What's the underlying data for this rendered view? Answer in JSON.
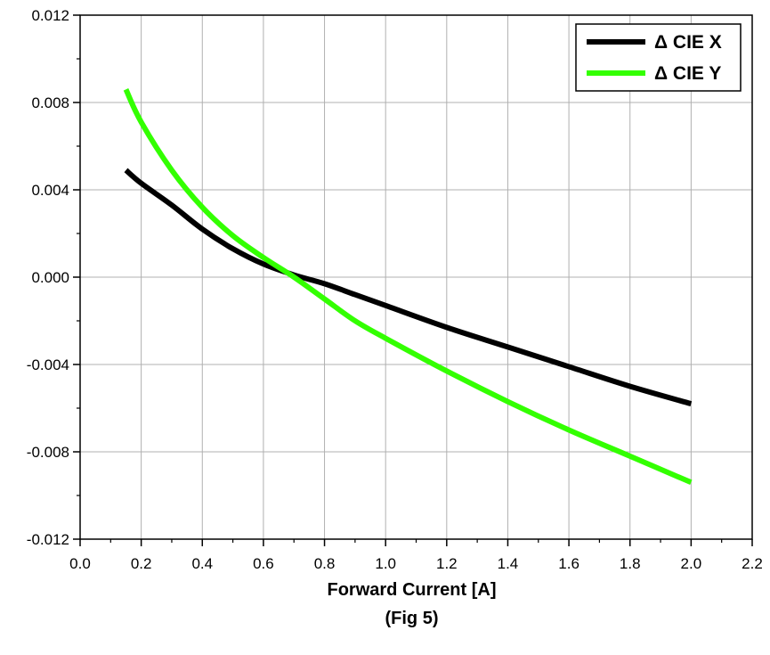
{
  "chart_data": {
    "type": "line",
    "xlabel": "Forward Current [A]",
    "caption": "(Fig 5)",
    "xlim": [
      0.0,
      2.2
    ],
    "ylim": [
      -0.012,
      0.012
    ],
    "x_ticks": [
      "0.0",
      "0.2",
      "0.4",
      "0.6",
      "0.8",
      "1.0",
      "1.2",
      "1.4",
      "1.6",
      "1.8",
      "2.0",
      "2.2"
    ],
    "y_ticks": [
      "0.012",
      "0.008",
      "0.004",
      "0.000",
      "-0.004",
      "-0.008",
      "-0.012"
    ],
    "grid": true,
    "legend_position": "top-right",
    "series": [
      {
        "name": "Δ CIE X",
        "color": "#000000",
        "x": [
          0.15,
          0.2,
          0.3,
          0.4,
          0.5,
          0.6,
          0.7,
          0.8,
          0.9,
          1.0,
          1.2,
          1.4,
          1.6,
          1.8,
          2.0
        ],
        "y": [
          0.0049,
          0.0043,
          0.0033,
          0.0022,
          0.0013,
          0.0006,
          0.0001,
          -0.0003,
          -0.0008,
          -0.0013,
          -0.0023,
          -0.0032,
          -0.0041,
          -0.005,
          -0.0058
        ]
      },
      {
        "name": "Δ CIE Y",
        "color": "#33ff00",
        "x": [
          0.15,
          0.2,
          0.3,
          0.4,
          0.5,
          0.6,
          0.7,
          0.8,
          0.9,
          1.0,
          1.2,
          1.4,
          1.6,
          1.8,
          2.0
        ],
        "y": [
          0.0086,
          0.0071,
          0.0049,
          0.0032,
          0.0019,
          0.0009,
          0.0,
          -0.001,
          -0.002,
          -0.0028,
          -0.0043,
          -0.0057,
          -0.007,
          -0.0082,
          -0.0094
        ]
      }
    ]
  }
}
